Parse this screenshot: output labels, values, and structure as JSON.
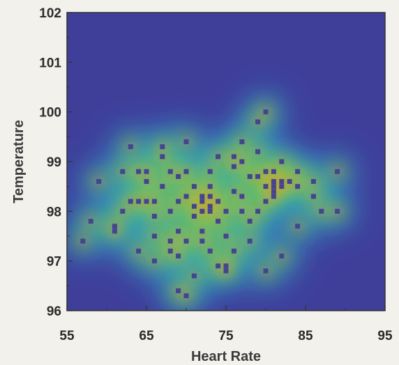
{
  "chart_data": {
    "type": "heatmap",
    "title": "",
    "xlabel": "Heart Rate",
    "ylabel": "Temperature",
    "xlim": [
      55,
      95
    ],
    "ylim": [
      96,
      102
    ],
    "x_ticks": [
      55,
      65,
      75,
      85,
      95
    ],
    "y_ticks": [
      96,
      97,
      98,
      99,
      100,
      101,
      102
    ],
    "x_tick_labels": [
      "55",
      "65",
      "75",
      "85",
      "95"
    ],
    "y_tick_labels": [
      "96",
      "97",
      "98",
      "99",
      "100",
      "101",
      "102"
    ],
    "grid": false,
    "legend": "none",
    "colormap": [
      "#3f3f9a",
      "#2fa6e0",
      "#3fbf58",
      "#f2e62e",
      "#e23a1e"
    ],
    "marker_color": "#45458f",
    "points": [
      [
        57,
        97.4
      ],
      [
        58,
        97.8
      ],
      [
        59,
        98.6
      ],
      [
        61,
        97.7
      ],
      [
        61,
        97.6
      ],
      [
        62,
        98.0
      ],
      [
        62,
        98.8
      ],
      [
        63,
        99.3
      ],
      [
        63,
        98.2
      ],
      [
        64,
        98.8
      ],
      [
        64,
        97.2
      ],
      [
        64,
        98.2
      ],
      [
        65,
        98.2
      ],
      [
        65,
        98.6
      ],
      [
        65,
        98.8
      ],
      [
        66,
        97.9
      ],
      [
        66,
        97.5
      ],
      [
        66,
        97.0
      ],
      [
        66,
        98.2
      ],
      [
        67,
        98.5
      ],
      [
        67,
        99.1
      ],
      [
        67,
        99.3
      ],
      [
        68,
        97.4
      ],
      [
        68,
        98.0
      ],
      [
        68,
        97.2
      ],
      [
        68,
        98.8
      ],
      [
        69,
        98.7
      ],
      [
        69,
        98.2
      ],
      [
        69,
        97.6
      ],
      [
        69,
        97.1
      ],
      [
        69,
        96.4
      ],
      [
        70,
        98.3
      ],
      [
        70,
        97.4
      ],
      [
        70,
        99.4
      ],
      [
        70,
        96.3
      ],
      [
        70,
        98.8
      ],
      [
        71,
        98.5
      ],
      [
        71,
        97.9
      ],
      [
        71,
        98.1
      ],
      [
        71,
        96.7
      ],
      [
        72,
        98.3
      ],
      [
        72,
        97.4
      ],
      [
        72,
        98.0
      ],
      [
        72,
        97.6
      ],
      [
        72,
        98.2
      ],
      [
        73,
        98.1
      ],
      [
        73,
        98.3
      ],
      [
        73,
        97.2
      ],
      [
        73,
        98.8
      ],
      [
        73,
        98.0
      ],
      [
        73,
        98.5
      ],
      [
        74,
        99.1
      ],
      [
        74,
        97.8
      ],
      [
        74,
        96.9
      ],
      [
        74,
        98.2
      ],
      [
        75,
        98.0
      ],
      [
        75,
        96.9
      ],
      [
        75,
        97.5
      ],
      [
        75,
        96.8
      ],
      [
        76,
        99.1
      ],
      [
        76,
        98.9
      ],
      [
        76,
        98.4
      ],
      [
        76,
        97.2
      ],
      [
        77,
        98.0
      ],
      [
        77,
        98.3
      ],
      [
        77,
        99.0
      ],
      [
        77,
        99.4
      ],
      [
        78,
        98.7
      ],
      [
        78,
        97.8
      ],
      [
        78,
        97.4
      ],
      [
        79,
        98.0
      ],
      [
        79,
        98.7
      ],
      [
        79,
        99.8
      ],
      [
        79,
        99.2
      ],
      [
        80,
        98.2
      ],
      [
        80,
        98.5
      ],
      [
        80,
        98.8
      ],
      [
        80,
        96.8
      ],
      [
        80,
        100.0
      ],
      [
        81,
        98.6
      ],
      [
        81,
        98.4
      ],
      [
        81,
        98.8
      ],
      [
        81,
        98.5
      ],
      [
        81,
        98.3
      ],
      [
        82,
        98.6
      ],
      [
        82,
        98.5
      ],
      [
        82,
        97.1
      ],
      [
        82,
        99.0
      ],
      [
        83,
        98.6
      ],
      [
        84,
        98.5
      ],
      [
        84,
        98.8
      ],
      [
        84,
        97.7
      ],
      [
        86,
        98.6
      ],
      [
        86,
        98.3
      ],
      [
        87,
        98.0
      ],
      [
        89,
        98.0
      ],
      [
        89,
        98.8
      ]
    ]
  }
}
